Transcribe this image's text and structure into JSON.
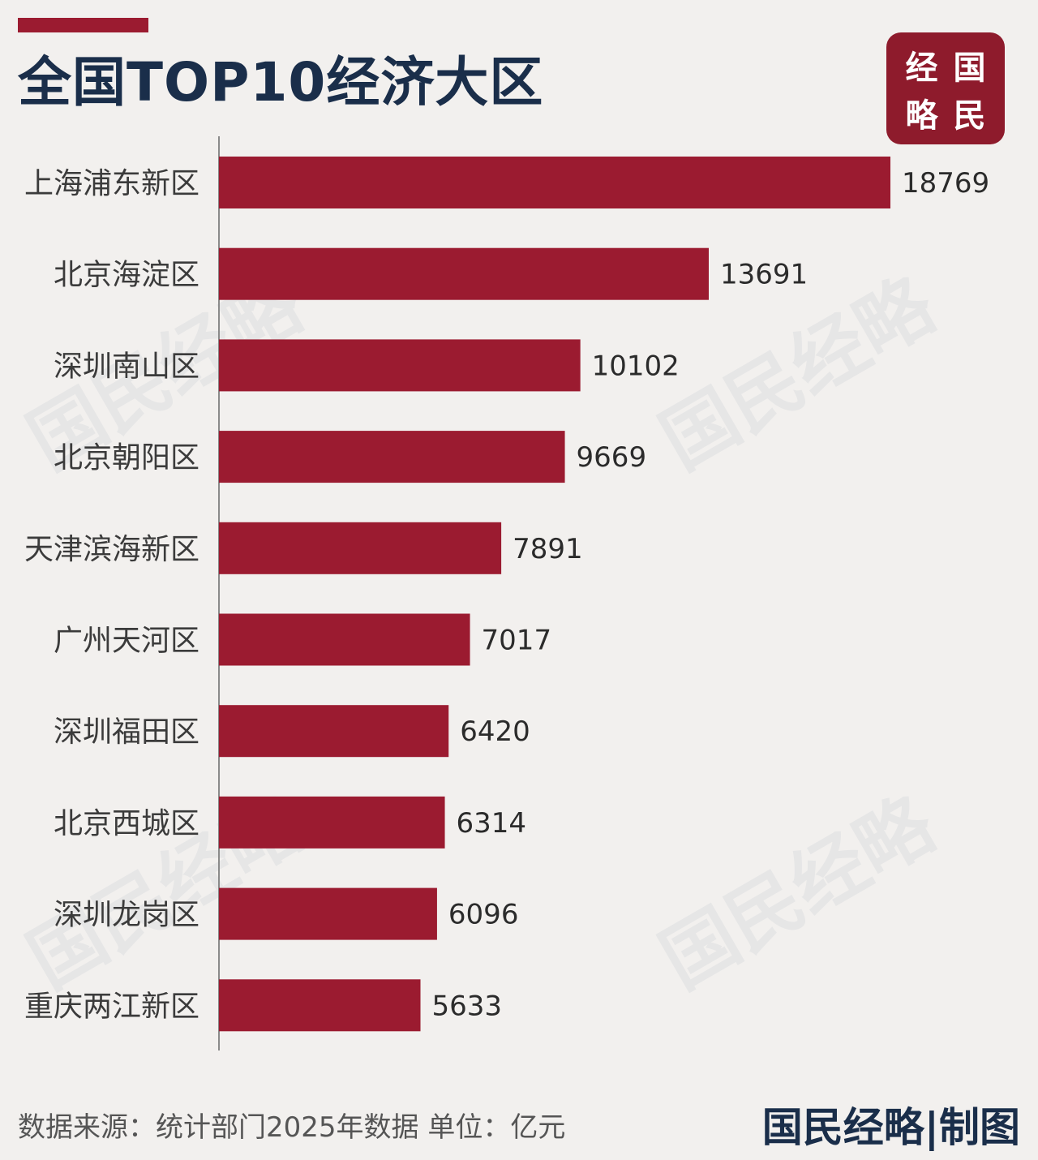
{
  "header": {
    "title": "全国TOP10经济大区"
  },
  "logo": {
    "chars": [
      "经",
      "国",
      "略",
      "民"
    ]
  },
  "watermark": {
    "text": "国民经略"
  },
  "footer": {
    "source": "数据来源：统计部门2025年数据 单位：亿元",
    "brand": "国民经略|制图"
  },
  "colors": {
    "bar": "#9b1b30",
    "title": "#1a2e4a",
    "accent": "#9b1b30",
    "background": "#f2f0ee"
  },
  "chart_data": {
    "type": "bar",
    "orientation": "horizontal",
    "categories": [
      "上海浦东新区",
      "北京海淀区",
      "深圳南山区",
      "北京朝阳区",
      "天津滨海新区",
      "广州天河区",
      "深圳福田区",
      "北京西城区",
      "深圳龙岗区",
      "重庆两江新区"
    ],
    "values": [
      18769,
      13691,
      10102,
      9669,
      7891,
      7017,
      6420,
      6314,
      6096,
      5633
    ],
    "value_labels": [
      "18769",
      "13691",
      "10102",
      "9669",
      "7891",
      "7017",
      "6420",
      "6314",
      "6096",
      "5633"
    ],
    "title": "全国TOP10经济大区",
    "xlim": [
      0,
      18769
    ],
    "grid": false,
    "legend": "none"
  }
}
